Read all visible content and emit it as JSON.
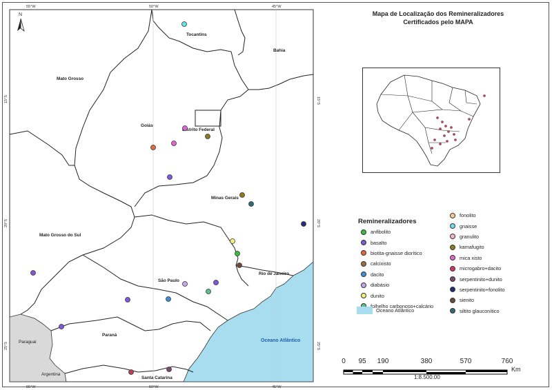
{
  "title_line1": "Mapa de Localização dos Remineralizadores",
  "title_line2": "Certificados pelo MAPA",
  "north_label": "N",
  "grid_labels": {
    "top_left": "55°W",
    "top_mid": "50°W",
    "top_right": "45°W",
    "bottom_left": "55°W",
    "bottom_mid": "50°W",
    "bottom_right": "45°W",
    "left_upper": "15°S",
    "left_mid": "20°S",
    "left_lower": "25°S",
    "right_upper": "15°S",
    "right_mid": "20°S",
    "right_lower": "25°S"
  },
  "region_labels": {
    "tocantins": "Tocantins",
    "bahia": "Bahia",
    "mato_grosso": "Mato Grosso",
    "goias": "Goiás",
    "distrito_federal": "Distrito Federal",
    "minas_gerais": "Minas Gerais",
    "mato_grosso_do_sul": "Mato Grosso do Sul",
    "sao_paulo": "São Paulo",
    "rio_de_janeiro": "Rio de Janeiro",
    "parana": "Paraná",
    "paraguai": "Paraguai",
    "argentina": "Argentina",
    "santa_catarina": "Santa Catarina",
    "oceano": "Oceano Atlântico"
  },
  "legend": {
    "title": "Remineralizadores",
    "items_col1": [
      {
        "label": "anfibolito",
        "color": "#3dbb3d"
      },
      {
        "label": "basalto",
        "color": "#7d5ad6"
      },
      {
        "label": "biotita-gnaisse diorítico",
        "color": "#e06a3a"
      },
      {
        "label": "calcixisto",
        "color": "#9b6e3a"
      },
      {
        "label": "dacito",
        "color": "#3f8fd9"
      },
      {
        "label": "diabásio",
        "color": "#c9a6e6"
      },
      {
        "label": "dunito",
        "color": "#f2f27a"
      },
      {
        "label": "folhelho carbonoso+calcário",
        "color": "#5fbf8a"
      }
    ],
    "items_col2": [
      {
        "label": "fonolito",
        "color": "#f6c99a"
      },
      {
        "label": "gnaisse",
        "color": "#66e2e2"
      },
      {
        "label": "granulito",
        "color": "#f4b6c6"
      },
      {
        "label": "kamafugito",
        "color": "#8c7a1f"
      },
      {
        "label": "mica xisto",
        "color": "#e066d6"
      },
      {
        "label": "microgabro+dacito",
        "color": "#c63c56"
      },
      {
        "label": "serpentinito+dunito",
        "color": "#7a4a6a"
      },
      {
        "label": "serpentinito+fonolito",
        "color": "#2a2a7a"
      },
      {
        "label": "sienito",
        "color": "#6b4a3a"
      },
      {
        "label": "siltito glauconítico",
        "color": "#2f6a7a"
      }
    ],
    "ocean_label": "Oceano Atlântico",
    "ocean_color": "#a8dcef"
  },
  "scale": {
    "ticks": [
      "0",
      "95",
      "190",
      "380",
      "570",
      "760"
    ],
    "unit": "Km",
    "ratio": "1:8.500.00"
  }
}
